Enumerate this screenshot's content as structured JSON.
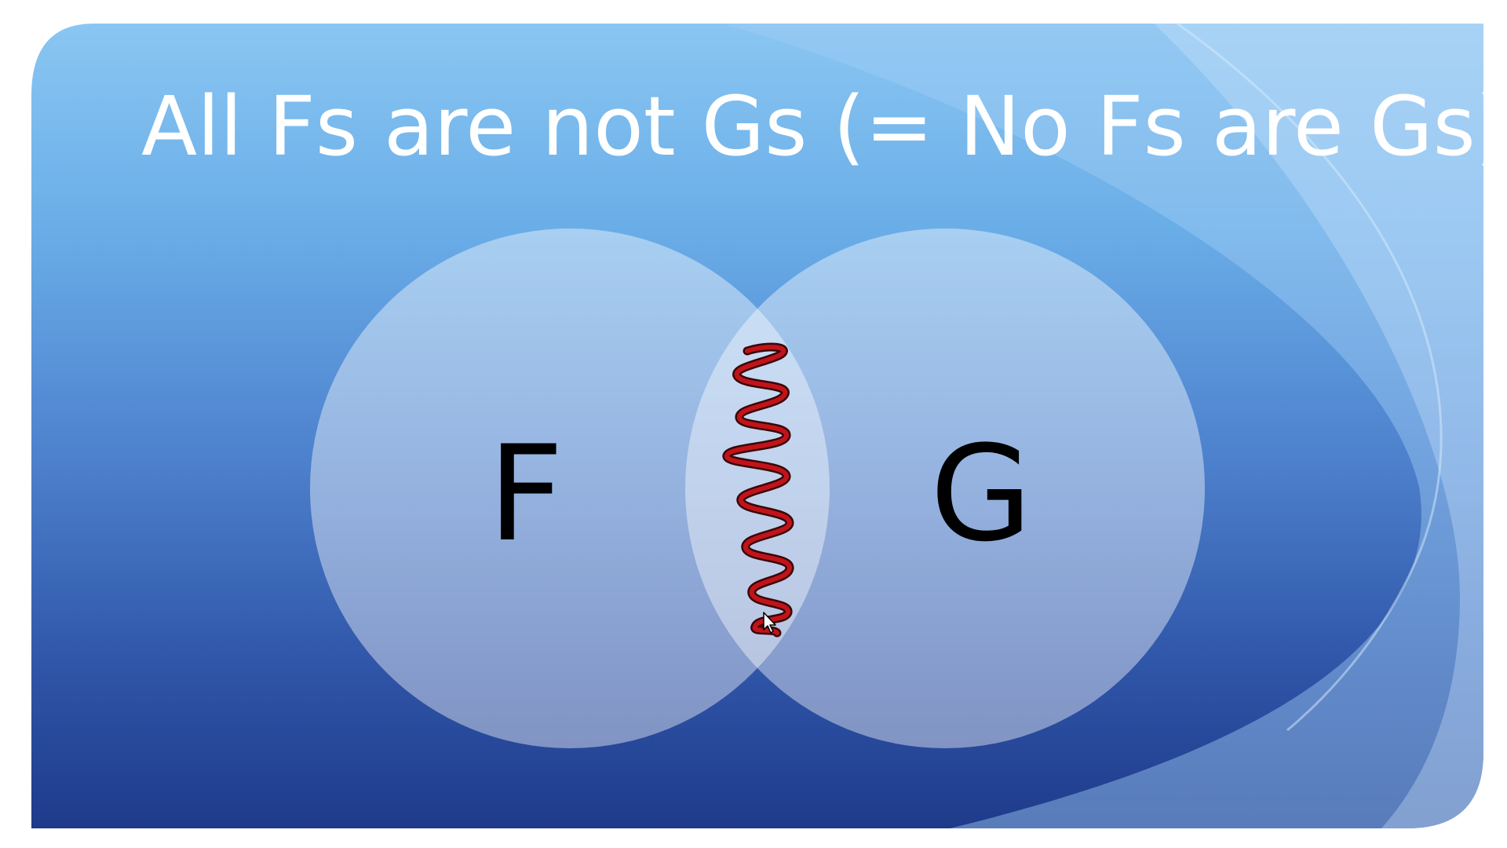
{
  "slide": {
    "title": "All Fs are not Gs (= No Fs are Gs)",
    "background_colors": {
      "top": "#8ac6f2",
      "middle": "#5a90d0",
      "bottom": "#1f3a8a"
    },
    "title_color": "#ffffff"
  },
  "venn": {
    "left_circle": {
      "label": "F"
    },
    "right_circle": {
      "label": "G"
    },
    "circle_fill": "#ffffff",
    "intersection_marking": {
      "kind": "squiggle-scribble",
      "color": "#c0141a",
      "meaning": "region shaded as empty"
    }
  },
  "cursor": {
    "icon": "mouse-pointer-icon"
  }
}
